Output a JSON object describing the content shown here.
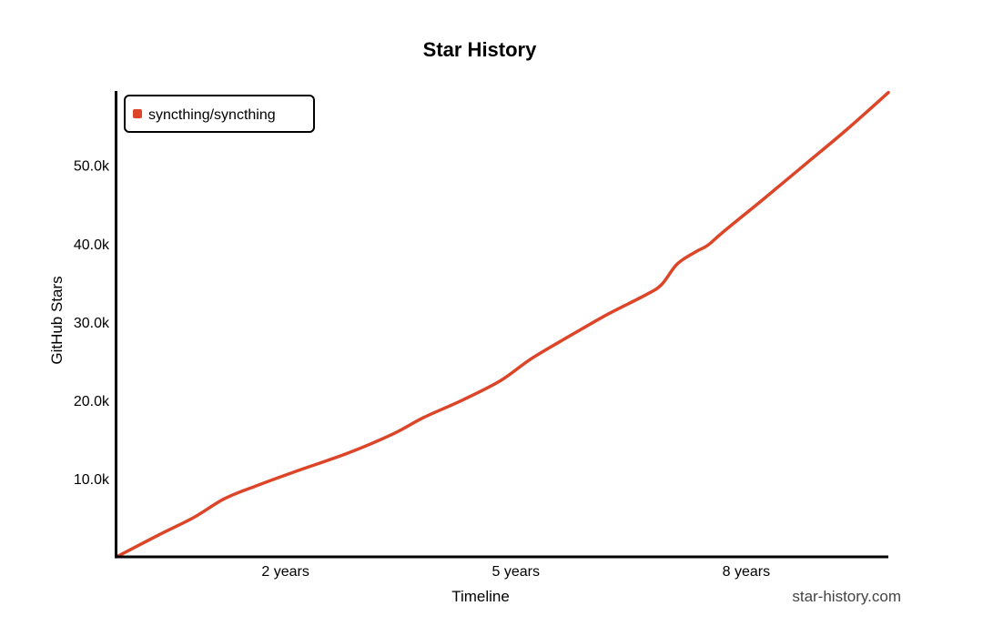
{
  "chart_data": {
    "type": "line",
    "title": "Star History",
    "xlabel": "Timeline",
    "ylabel": "GitHub Stars",
    "x_unit": "years",
    "xlim": [
      0,
      10.05
    ],
    "ylim": [
      0,
      59500
    ],
    "x_ticks": [
      {
        "value": 2.2,
        "label": "2 years"
      },
      {
        "value": 5.2,
        "label": "5 years"
      },
      {
        "value": 8.2,
        "label": "8 years"
      }
    ],
    "y_ticks": [
      {
        "value": 10000,
        "label": "10.0k"
      },
      {
        "value": 20000,
        "label": "20.0k"
      },
      {
        "value": 30000,
        "label": "30.0k"
      },
      {
        "value": 40000,
        "label": "40.0k"
      },
      {
        "value": 50000,
        "label": "50.0k"
      }
    ],
    "grid": false,
    "legend_position": "top-left",
    "series": [
      {
        "name": "syncthing/syncthing",
        "color": "#dd4528",
        "x": [
          0,
          0.55,
          1.0,
          1.4,
          1.8,
          2.3,
          3.0,
          3.6,
          4.0,
          4.5,
          5.0,
          5.4,
          5.9,
          6.4,
          6.9,
          7.1,
          7.3,
          7.55,
          7.7,
          7.9,
          8.4,
          9.0,
          9.5,
          10.05
        ],
        "values": [
          0,
          2800,
          5000,
          7400,
          9000,
          10800,
          13200,
          15700,
          17800,
          20000,
          22500,
          25300,
          28200,
          31000,
          33500,
          34800,
          37400,
          39000,
          39800,
          41500,
          45500,
          50400,
          54500,
          59300
        ]
      }
    ],
    "watermark": "star-history.com"
  }
}
